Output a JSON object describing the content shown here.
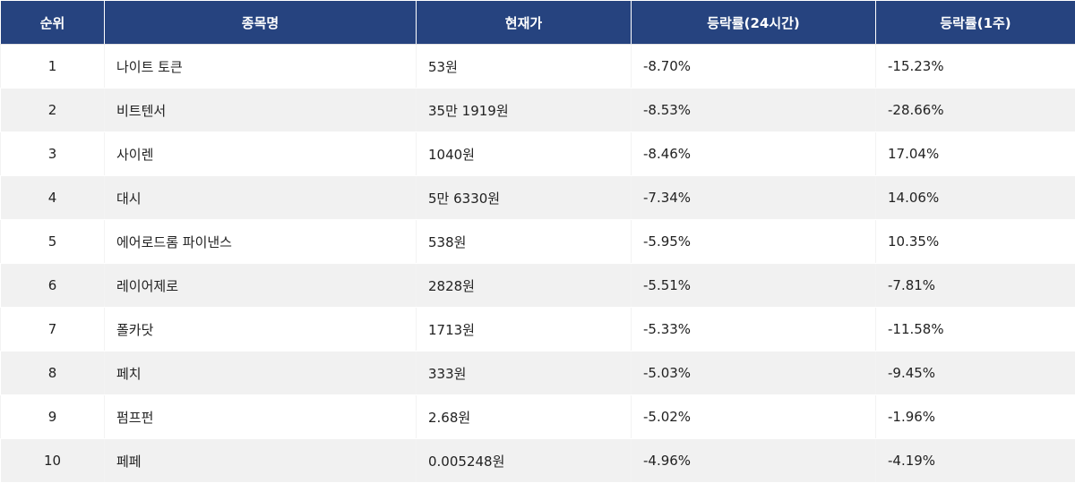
{
  "table": {
    "headers": {
      "rank": "순위",
      "name": "종목명",
      "price": "현재가",
      "change_24h": "등락률(24시간)",
      "change_1w": "등락률(1주)"
    },
    "rows": [
      {
        "rank": "1",
        "name": "나이트 토큰",
        "price": "53원",
        "change_24h": "-8.70%",
        "change_1w": "-15.23%"
      },
      {
        "rank": "2",
        "name": "비트텐서",
        "price": "35만 1919원",
        "change_24h": "-8.53%",
        "change_1w": "-28.66%"
      },
      {
        "rank": "3",
        "name": "사이렌",
        "price": "1040원",
        "change_24h": "-8.46%",
        "change_1w": "17.04%"
      },
      {
        "rank": "4",
        "name": "대시",
        "price": "5만 6330원",
        "change_24h": "-7.34%",
        "change_1w": "14.06%"
      },
      {
        "rank": "5",
        "name": "에어로드롬 파이낸스",
        "price": "538원",
        "change_24h": "-5.95%",
        "change_1w": "10.35%"
      },
      {
        "rank": "6",
        "name": "레이어제로",
        "price": "2828원",
        "change_24h": "-5.51%",
        "change_1w": "-7.81%"
      },
      {
        "rank": "7",
        "name": "폴카닷",
        "price": "1713원",
        "change_24h": "-5.33%",
        "change_1w": "-11.58%"
      },
      {
        "rank": "8",
        "name": "페치",
        "price": "333원",
        "change_24h": "-5.03%",
        "change_1w": "-9.45%"
      },
      {
        "rank": "9",
        "name": "펌프펀",
        "price": "2.68원",
        "change_24h": "-5.02%",
        "change_1w": "-1.96%"
      },
      {
        "rank": "10",
        "name": "페페",
        "price": "0.005248원",
        "change_24h": "-4.96%",
        "change_1w": "-4.19%"
      }
    ]
  },
  "colors": {
    "header_bg": "#26437f",
    "header_text": "#ffffff",
    "row_alt_bg": "#f1f1f1",
    "text": "#222222"
  }
}
